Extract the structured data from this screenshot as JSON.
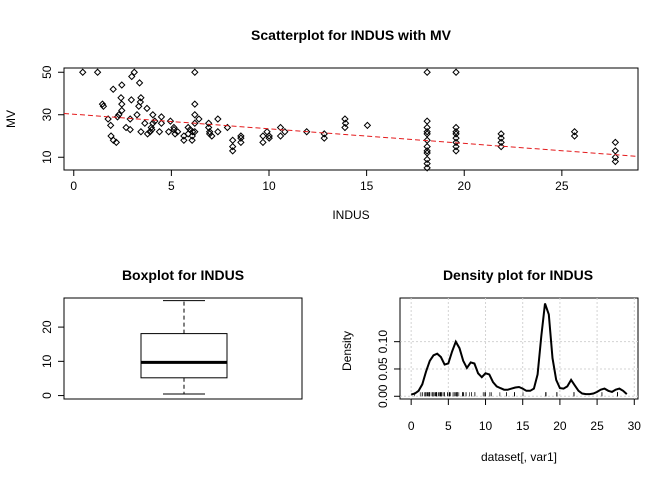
{
  "chart_data": [
    {
      "type": "scatter",
      "title": "Scatterplot for INDUS with MV",
      "xlabel": "INDUS",
      "ylabel": "MV",
      "xlim": [
        -0.5,
        28.9
      ],
      "ylim": [
        4,
        52
      ],
      "xticks": [
        0,
        5,
        10,
        15,
        20,
        25
      ],
      "yticks": [
        10,
        30,
        50
      ],
      "trend_line": {
        "style": "dashed",
        "color": "#e41a1c",
        "x": [
          -0.5,
          28.9
        ],
        "y": [
          30.6,
          10.4
        ]
      },
      "points": [
        [
          0.46,
          50
        ],
        [
          1.22,
          50
        ],
        [
          1.47,
          35
        ],
        [
          1.52,
          34
        ],
        [
          1.89,
          25
        ],
        [
          1.91,
          20
        ],
        [
          2.03,
          18
        ],
        [
          2.18,
          17
        ],
        [
          2.24,
          29
        ],
        [
          2.46,
          32
        ],
        [
          2.68,
          24
        ],
        [
          2.89,
          23
        ],
        [
          3.24,
          30
        ],
        [
          3.41,
          36
        ],
        [
          3.64,
          26
        ],
        [
          2.02,
          42
        ],
        [
          2.97,
          48
        ],
        [
          3.33,
          34
        ],
        [
          3.44,
          38
        ],
        [
          3.75,
          33
        ],
        [
          3.78,
          21
        ],
        [
          3.97,
          24
        ],
        [
          4.05,
          30
        ],
        [
          4.15,
          27
        ],
        [
          2.42,
          38
        ],
        [
          2.46,
          44
        ],
        [
          3.1,
          50
        ],
        [
          3.91,
          22
        ],
        [
          1.76,
          28
        ],
        [
          2.31,
          30
        ],
        [
          2.95,
          37
        ],
        [
          3.37,
          45
        ],
        [
          4.0,
          23
        ],
        [
          4.39,
          22
        ],
        [
          4.49,
          26
        ],
        [
          4.86,
          22
        ],
        [
          4.95,
          27
        ],
        [
          5.13,
          23
        ],
        [
          5.19,
          21
        ],
        [
          5.32,
          22
        ],
        [
          5.64,
          20
        ],
        [
          5.86,
          24
        ],
        [
          5.96,
          23
        ],
        [
          6.06,
          18
        ],
        [
          6.07,
          20
        ],
        [
          6.09,
          22
        ],
        [
          6.2,
          35
        ],
        [
          6.2,
          30
        ],
        [
          6.2,
          50
        ],
        [
          6.41,
          28
        ],
        [
          6.91,
          24
        ],
        [
          6.96,
          22
        ],
        [
          7.07,
          20
        ],
        [
          7.38,
          28
        ],
        [
          7.87,
          24
        ],
        [
          8.14,
          18
        ],
        [
          8.56,
          19
        ],
        [
          8.56,
          17
        ],
        [
          9.69,
          20
        ],
        [
          9.9,
          22
        ],
        [
          10.01,
          20
        ],
        [
          10.59,
          24
        ],
        [
          10.81,
          22
        ],
        [
          11.93,
          22
        ],
        [
          12.83,
          21
        ],
        [
          13.89,
          24
        ],
        [
          13.92,
          26
        ],
        [
          15.04,
          25
        ],
        [
          18.1,
          50
        ],
        [
          18.1,
          27
        ],
        [
          18.1,
          24
        ],
        [
          18.1,
          21
        ],
        [
          18.1,
          18
        ],
        [
          18.1,
          15
        ],
        [
          18.1,
          12
        ],
        [
          18.1,
          9
        ],
        [
          18.1,
          7
        ],
        [
          18.1,
          5
        ],
        [
          19.58,
          50
        ],
        [
          19.58,
          24
        ],
        [
          19.58,
          22
        ],
        [
          19.58,
          19
        ],
        [
          19.58,
          17
        ],
        [
          19.58,
          15
        ],
        [
          21.89,
          21
        ],
        [
          21.89,
          19
        ],
        [
          21.89,
          17
        ],
        [
          21.89,
          15
        ],
        [
          25.65,
          22
        ],
        [
          25.65,
          20
        ],
        [
          27.74,
          13
        ],
        [
          27.74,
          10
        ],
        [
          27.74,
          8
        ],
        [
          5.13,
          24
        ],
        [
          4.49,
          29
        ],
        [
          6.2,
          26
        ],
        [
          6.2,
          22
        ],
        [
          6.91,
          26
        ],
        [
          8.14,
          15
        ],
        [
          8.14,
          13
        ],
        [
          9.69,
          17
        ],
        [
          10.59,
          20
        ],
        [
          12.83,
          19
        ],
        [
          13.89,
          28
        ],
        [
          18.1,
          13
        ],
        [
          18.1,
          22
        ],
        [
          19.58,
          13
        ],
        [
          19.58,
          21
        ],
        [
          27.74,
          17
        ],
        [
          5.86,
          21
        ],
        [
          5.64,
          18
        ],
        [
          3.44,
          22
        ],
        [
          4.05,
          26
        ],
        [
          2.46,
          35
        ],
        [
          6.96,
          21
        ],
        [
          7.38,
          22
        ],
        [
          8.56,
          20
        ],
        [
          10.01,
          19
        ],
        [
          2.89,
          28
        ]
      ]
    },
    {
      "type": "box",
      "title": "Boxplot for  INDUS",
      "ylim": [
        -1.0,
        28.5
      ],
      "yticks": [
        0,
        10,
        20
      ],
      "whisker_low": 0.46,
      "q1": 5.19,
      "median": 9.69,
      "q3": 18.1,
      "whisker_high": 27.74
    },
    {
      "type": "line",
      "title": "Density plot for INDUS",
      "xlabel": "dataset[, var1]",
      "ylabel": "Density",
      "xlim": [
        -1.5,
        30.5
      ],
      "ylim": [
        -0.005,
        0.18
      ],
      "xticks": [
        0,
        5,
        10,
        15,
        20,
        25,
        30
      ],
      "yticks": [
        0.0,
        0.05,
        0.1
      ],
      "ytick_labels": [
        "0.00",
        "0.05",
        "0.10"
      ],
      "grid": true,
      "x": [
        0.0,
        0.5,
        1.0,
        1.5,
        2.0,
        2.5,
        3.0,
        3.5,
        4.0,
        4.5,
        5.0,
        5.5,
        6.0,
        6.5,
        7.0,
        7.5,
        8.0,
        8.5,
        9.0,
        9.5,
        10.0,
        10.5,
        11.0,
        11.5,
        12.0,
        12.5,
        13.0,
        13.5,
        14.0,
        14.5,
        15.0,
        15.5,
        16.0,
        16.5,
        17.0,
        17.5,
        18.0,
        18.5,
        19.0,
        19.5,
        20.0,
        20.5,
        21.0,
        21.5,
        22.0,
        22.5,
        23.0,
        23.5,
        24.0,
        24.5,
        25.0,
        25.5,
        26.0,
        26.5,
        27.0,
        27.5,
        28.0,
        28.5,
        29.0
      ],
      "y": [
        0.003,
        0.005,
        0.01,
        0.022,
        0.045,
        0.065,
        0.075,
        0.078,
        0.072,
        0.058,
        0.06,
        0.082,
        0.1,
        0.088,
        0.065,
        0.052,
        0.062,
        0.06,
        0.042,
        0.035,
        0.042,
        0.04,
        0.026,
        0.018,
        0.015,
        0.012,
        0.012,
        0.014,
        0.016,
        0.017,
        0.014,
        0.01,
        0.01,
        0.014,
        0.04,
        0.11,
        0.17,
        0.15,
        0.07,
        0.03,
        0.015,
        0.014,
        0.018,
        0.03,
        0.02,
        0.01,
        0.005,
        0.004,
        0.004,
        0.005,
        0.008,
        0.012,
        0.014,
        0.01,
        0.008,
        0.012,
        0.014,
        0.01,
        0.004
      ]
    }
  ]
}
